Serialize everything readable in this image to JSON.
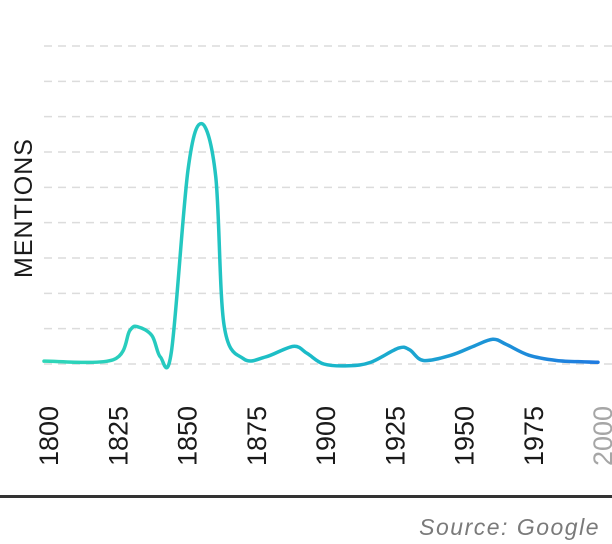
{
  "chart_data": {
    "type": "line",
    "ylabel": "MENTIONS",
    "xlabel": "",
    "source": "Source: Google",
    "x_ticks": [
      "1800",
      "1825",
      "1850",
      "1875",
      "1900",
      "1925",
      "1950",
      "1975",
      "2000"
    ],
    "x_tick_dimmed": [
      "2000"
    ],
    "xlim": [
      1800,
      2000
    ],
    "ylim": [
      0,
      9
    ],
    "grid": "horizontal-dashed",
    "series": [
      {
        "x": [
          1800,
          1825,
          1831,
          1834,
          1839,
          1842,
          1846,
          1852,
          1857,
          1862,
          1865,
          1872,
          1880,
          1890,
          1895,
          1901,
          1910,
          1918,
          1928,
          1932,
          1937,
          1947,
          1955,
          1962,
          1967,
          1975,
          1985,
          1995,
          2000
        ],
        "values": [
          0.08,
          0.12,
          0.95,
          1.05,
          0.8,
          0.2,
          0.35,
          5.5,
          6.8,
          5.3,
          1.1,
          0.15,
          0.2,
          0.5,
          0.3,
          0.0,
          -0.05,
          0.05,
          0.45,
          0.4,
          0.1,
          0.25,
          0.5,
          0.7,
          0.55,
          0.25,
          0.1,
          0.06,
          0.05
        ],
        "gradient": [
          "#2fd6b8",
          "#19b9c9",
          "#1f7be0"
        ]
      }
    ]
  }
}
